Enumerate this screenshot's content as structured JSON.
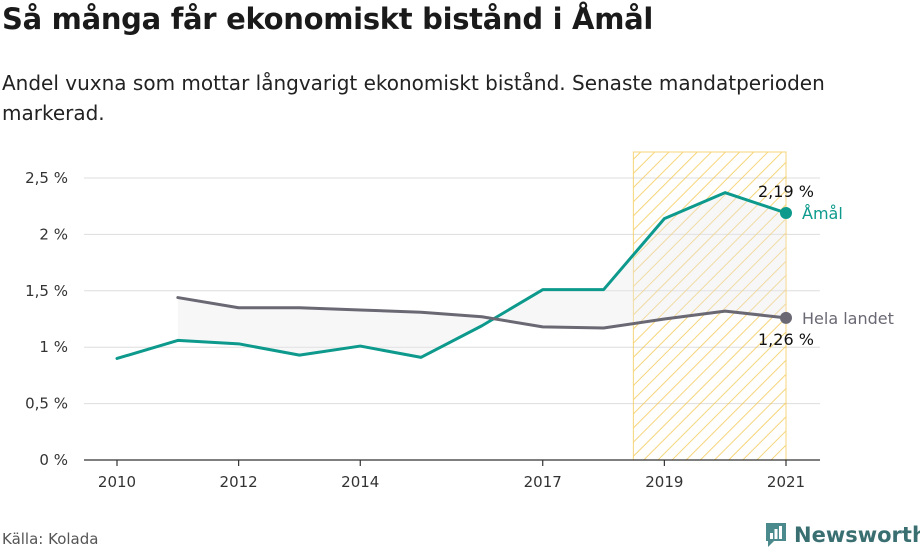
{
  "header": {
    "title": "Så många får ekonomiskt bistånd i Åmål",
    "subtitle": "Andel vuxna som mottar långvarigt ekonomiskt bistånd. Senaste mandatperioden markerad."
  },
  "footer": {
    "source": "Källa: Kolada",
    "brand": "Newsworthy"
  },
  "colors": {
    "amal": "#0d9a8c",
    "national": "#6a6873",
    "highlight": "#f3c74f",
    "grid": "#dddddd"
  },
  "chart_data": {
    "type": "line",
    "x_ticks": [
      2010,
      2012,
      2014,
      2017,
      2019,
      2021
    ],
    "y_ticks": [
      0,
      0.5,
      1,
      1.5,
      2,
      2.5
    ],
    "y_tick_labels": [
      "0 %",
      "0,5 %",
      "1 %",
      "1,5 %",
      "2 %",
      "2,5 %"
    ],
    "xlim": [
      2010,
      2021
    ],
    "ylim": [
      0,
      2.5
    ],
    "highlight_period": [
      2019,
      2021
    ],
    "series": [
      {
        "name": "Åmål",
        "color": "#0d9a8c",
        "x": [
          2010,
          2011,
          2012,
          2013,
          2014,
          2015,
          2016,
          2017,
          2018,
          2019,
          2020,
          2021
        ],
        "values": [
          0.9,
          1.06,
          1.03,
          0.93,
          1.01,
          0.91,
          1.19,
          1.51,
          1.51,
          2.14,
          2.37,
          2.19
        ],
        "end_label": "2,19 %"
      },
      {
        "name": "Hela landet",
        "color": "#6a6873",
        "x": [
          2011,
          2012,
          2013,
          2014,
          2015,
          2016,
          2017,
          2018,
          2019,
          2020,
          2021
        ],
        "values": [
          1.44,
          1.35,
          1.35,
          1.33,
          1.31,
          1.27,
          1.18,
          1.17,
          1.25,
          1.32,
          1.26
        ],
        "end_label": "1,26 %"
      }
    ]
  }
}
